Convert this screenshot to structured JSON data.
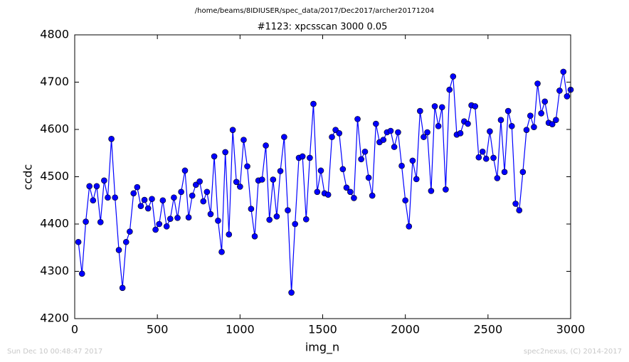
{
  "chart_data": {
    "type": "line",
    "suptitle": "/home/beams/8IDIUSER/spec_data/2017/Dec2017/archer20171204",
    "title": "#1123: xpcsscan 3000 0.05",
    "xlabel": "img_n",
    "ylabel": "ccdc",
    "footer_left": "Sun Dec 10 00:48:47 2017",
    "footer_right": "spec2nexus, (C) 2014-2017",
    "xlim": [
      0,
      3000
    ],
    "xticks": [
      0,
      500,
      1000,
      1500,
      2000,
      2500,
      3000
    ],
    "ylim": [
      4200,
      4800
    ],
    "yticks": [
      4200,
      4300,
      4400,
      4500,
      4600,
      4700,
      4800
    ],
    "grid": false,
    "x": [
      22,
      44,
      67,
      89,
      111,
      133,
      156,
      178,
      200,
      222,
      244,
      267,
      289,
      311,
      333,
      356,
      378,
      400,
      422,
      444,
      467,
      489,
      511,
      533,
      556,
      578,
      600,
      622,
      644,
      667,
      689,
      711,
      733,
      756,
      778,
      800,
      822,
      844,
      867,
      889,
      911,
      933,
      956,
      978,
      1000,
      1022,
      1044,
      1067,
      1089,
      1111,
      1133,
      1156,
      1178,
      1200,
      1222,
      1244,
      1267,
      1289,
      1311,
      1333,
      1356,
      1378,
      1400,
      1422,
      1444,
      1467,
      1489,
      1511,
      1533,
      1556,
      1578,
      1600,
      1622,
      1644,
      1667,
      1689,
      1711,
      1733,
      1756,
      1778,
      1800,
      1822,
      1844,
      1867,
      1889,
      1911,
      1933,
      1956,
      1978,
      2000,
      2022,
      2044,
      2067,
      2089,
      2111,
      2133,
      2156,
      2178,
      2200,
      2222,
      2244,
      2267,
      2289,
      2311,
      2333,
      2356,
      2378,
      2400,
      2422,
      2444,
      2467,
      2489,
      2511,
      2533,
      2556,
      2578,
      2600,
      2622,
      2644,
      2667,
      2689,
      2711,
      2733,
      2756,
      2778,
      2800,
      2822,
      2844,
      2867,
      2889,
      2911,
      2933,
      2956,
      2978,
      3000
    ],
    "series": [
      {
        "color": "#0000ff",
        "values": [
          4362,
          4295,
          4405,
          4480,
          4450,
          4480,
          4404,
          4492,
          4456,
          4580,
          4456,
          4345,
          4265,
          4362,
          4384,
          4465,
          4478,
          4438,
          4451,
          4433,
          4453,
          4388,
          4400,
          4450,
          4395,
          4411,
          4456,
          4413,
          4468,
          4513,
          4414,
          4460,
          4483,
          4490,
          4448,
          4468,
          4421,
          4543,
          4407,
          4341,
          4552,
          4378,
          4599,
          4489,
          4479,
          4578,
          4522,
          4432,
          4374,
          4492,
          4494,
          4566,
          4409,
          4494,
          4416,
          4512,
          4584,
          4429,
          4255,
          4400,
          4540,
          4543,
          4410,
          4540,
          4654,
          4468,
          4513,
          4465,
          4462,
          4584,
          4599,
          4592,
          4516,
          4477,
          4468,
          4455,
          4622,
          4537,
          4553,
          4498,
          4460,
          4612,
          4573,
          4578,
          4594,
          4597,
          4563,
          4594,
          4523,
          4450,
          4395,
          4534,
          4495,
          4639,
          4584,
          4594,
          4470,
          4649,
          4607,
          4647,
          4473,
          4684,
          4712,
          4589,
          4592,
          4617,
          4612,
          4651,
          4649,
          4541,
          4553,
          4538,
          4596,
          4540,
          4497,
          4620,
          4510,
          4639,
          4607,
          4443,
          4429,
          4510,
          4599,
          4629,
          4605,
          4697,
          4634,
          4659,
          4614,
          4611,
          4620,
          4682,
          4722,
          4670,
          4684
        ]
      }
    ]
  }
}
